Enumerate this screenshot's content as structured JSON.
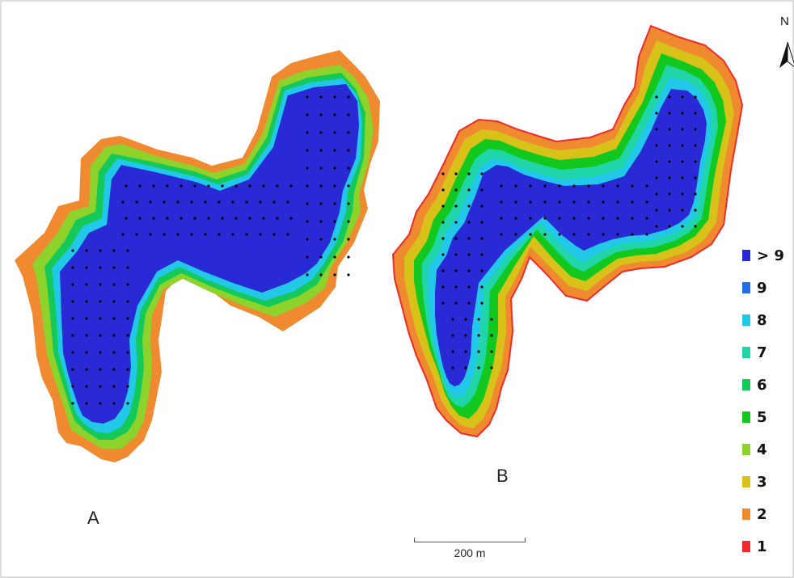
{
  "panels": {
    "a_label": "A",
    "b_label": "B"
  },
  "north_arrow": {
    "label": "N"
  },
  "legend": {
    "items": [
      {
        "label": "> 9",
        "color": "#2929d6"
      },
      {
        "label": "9",
        "color": "#1f6fe6"
      },
      {
        "label": "8",
        "color": "#22c8e8"
      },
      {
        "label": "7",
        "color": "#20d6a8"
      },
      {
        "label": "6",
        "color": "#14c95a"
      },
      {
        "label": "5",
        "color": "#12c81e"
      },
      {
        "label": "4",
        "color": "#8ed22c"
      },
      {
        "label": "3",
        "color": "#d8c21a"
      },
      {
        "label": "2",
        "color": "#f08a30"
      },
      {
        "label": "1",
        "color": "#f02a2a"
      }
    ]
  },
  "scale_bar": {
    "label": "200 m"
  }
}
